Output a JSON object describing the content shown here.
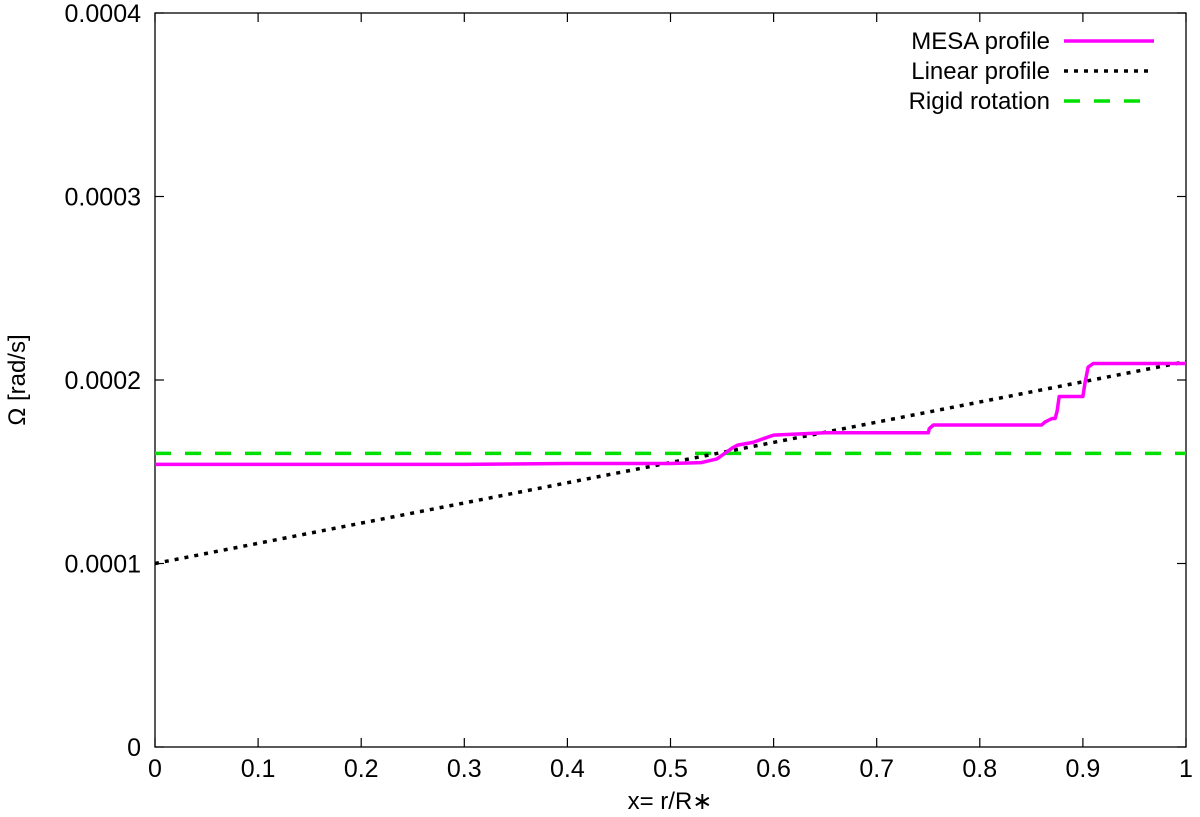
{
  "chart_data": {
    "type": "line",
    "xlabel": "x= r/R∗",
    "ylabel": "Ω [rad/s]",
    "xlim": [
      0,
      1
    ],
    "ylim": [
      0,
      0.0004
    ],
    "xticks": [
      0,
      0.1,
      0.2,
      0.3,
      0.4,
      0.5,
      0.6,
      0.7,
      0.8,
      0.9,
      1
    ],
    "xtick_labels": [
      "0",
      "0.1",
      "0.2",
      "0.3",
      "0.4",
      "0.5",
      "0.6",
      "0.7",
      "0.8",
      "0.9",
      "1"
    ],
    "yticks": [
      0,
      0.0001,
      0.0002,
      0.0003,
      0.0004
    ],
    "ytick_labels": [
      "0",
      "0.0001",
      "0.0002",
      "0.0003",
      "0.0004"
    ],
    "grid": false,
    "legend_position": "top-right",
    "series": [
      {
        "name": "MESA profile",
        "color": "#ff00ff",
        "style": "solid",
        "x": [
          0,
          0.1,
          0.2,
          0.3,
          0.4,
          0.5,
          0.53,
          0.545,
          0.56,
          0.565,
          0.58,
          0.59,
          0.6,
          0.65,
          0.75,
          0.751,
          0.755,
          0.86,
          0.863,
          0.87,
          0.873,
          0.875,
          0.877,
          0.9,
          0.902,
          0.905,
          0.91,
          0.94,
          1.0
        ],
        "y": [
          0.000154,
          0.000154,
          0.000154,
          0.000154,
          0.0001545,
          0.0001545,
          0.000155,
          0.000157,
          0.000163,
          0.0001645,
          0.000166,
          0.000168,
          0.00017,
          0.0001712,
          0.0001712,
          0.0001735,
          0.0001755,
          0.0001755,
          0.000177,
          0.000179,
          0.000179,
          0.000183,
          0.000191,
          0.000191,
          0.0001985,
          0.000207,
          0.000209,
          0.000209,
          0.000209
        ]
      },
      {
        "name": "Linear profile",
        "color": "#000000",
        "style": "dotted",
        "x": [
          0,
          1
        ],
        "y": [
          0.0001,
          0.00021
        ]
      },
      {
        "name": "Rigid rotation",
        "color": "#00e000",
        "style": "dashed",
        "x": [
          0,
          1
        ],
        "y": [
          0.00016,
          0.00016
        ]
      }
    ]
  }
}
